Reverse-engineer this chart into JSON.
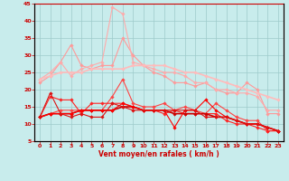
{
  "xlabel": "Vent moyen/en rafales ( km/h )",
  "xlim": [
    -0.5,
    23.5
  ],
  "ylim": [
    5,
    45
  ],
  "yticks": [
    5,
    10,
    15,
    20,
    25,
    30,
    35,
    40,
    45
  ],
  "xticks": [
    0,
    1,
    2,
    3,
    4,
    5,
    6,
    7,
    8,
    9,
    10,
    11,
    12,
    13,
    14,
    15,
    16,
    17,
    18,
    19,
    20,
    21,
    22,
    23
  ],
  "bg_color": "#c8ecec",
  "grid_color": "#9dcaca",
  "spine_color": "#cc0000",
  "label_color": "#cc0000",
  "lines": [
    {
      "y": [
        22,
        24,
        28,
        33,
        27,
        26,
        27,
        27,
        35,
        30,
        27,
        25,
        24,
        22,
        22,
        21,
        22,
        20,
        19,
        19,
        22,
        20,
        13,
        13
      ],
      "color": "#ff9999",
      "lw": 0.8,
      "marker": "D",
      "ms": 1.8
    },
    {
      "y": [
        23,
        25,
        28,
        24,
        26,
        27,
        28,
        44,
        42,
        28,
        27,
        26,
        25,
        25,
        24,
        22,
        22,
        20,
        20,
        19,
        19,
        18,
        14,
        14
      ],
      "color": "#ffaaaa",
      "lw": 0.8,
      "marker": "D",
      "ms": 1.8
    },
    {
      "y": [
        23,
        24,
        25,
        25,
        25,
        26,
        26,
        26,
        26,
        27,
        27,
        27,
        27,
        26,
        25,
        25,
        24,
        23,
        22,
        21,
        20,
        19,
        18,
        17
      ],
      "color": "#ffbbbb",
      "lw": 1.2,
      "marker": "D",
      "ms": 1.8
    },
    {
      "y": [
        12,
        13,
        14,
        14,
        14,
        14,
        14,
        18,
        23,
        16,
        15,
        15,
        16,
        14,
        15,
        14,
        13,
        16,
        14,
        12,
        11,
        11,
        8,
        8
      ],
      "color": "#ff4444",
      "lw": 0.8,
      "marker": "D",
      "ms": 1.8
    },
    {
      "y": [
        12,
        18,
        17,
        17,
        13,
        16,
        16,
        16,
        16,
        15,
        14,
        14,
        13,
        14,
        13,
        13,
        13,
        13,
        11,
        10,
        10,
        9,
        8,
        8
      ],
      "color": "#ff2222",
      "lw": 0.8,
      "marker": "D",
      "ms": 1.8
    },
    {
      "y": [
        12,
        13,
        13,
        13,
        14,
        14,
        14,
        14,
        15,
        15,
        14,
        14,
        14,
        13,
        13,
        13,
        13,
        12,
        12,
        11,
        10,
        10,
        9,
        8
      ],
      "color": "#cc0000",
      "lw": 1.2,
      "marker": "D",
      "ms": 1.8
    },
    {
      "y": [
        12,
        13,
        13,
        13,
        14,
        14,
        14,
        14,
        16,
        15,
        14,
        14,
        14,
        9,
        14,
        14,
        17,
        14,
        12,
        11,
        10,
        10,
        9,
        8
      ],
      "color": "#ff0000",
      "lw": 0.8,
      "marker": "D",
      "ms": 1.8
    },
    {
      "y": [
        12,
        19,
        13,
        12,
        13,
        12,
        12,
        16,
        15,
        14,
        14,
        14,
        14,
        14,
        14,
        14,
        12,
        12,
        12,
        11,
        10,
        10,
        9,
        8
      ],
      "color": "#dd1111",
      "lw": 0.8,
      "marker": "D",
      "ms": 1.8
    }
  ],
  "wind_symbols": [
    "↴",
    "↴",
    "↴",
    "↴",
    "↴",
    "↴",
    "↴",
    "↴",
    "↴",
    "↴",
    "↑",
    "↴",
    "↴",
    "↑",
    "↑",
    "↑",
    "↴",
    "↴",
    "↴",
    "↴",
    "↴",
    "↴",
    "↴",
    "↴"
  ]
}
